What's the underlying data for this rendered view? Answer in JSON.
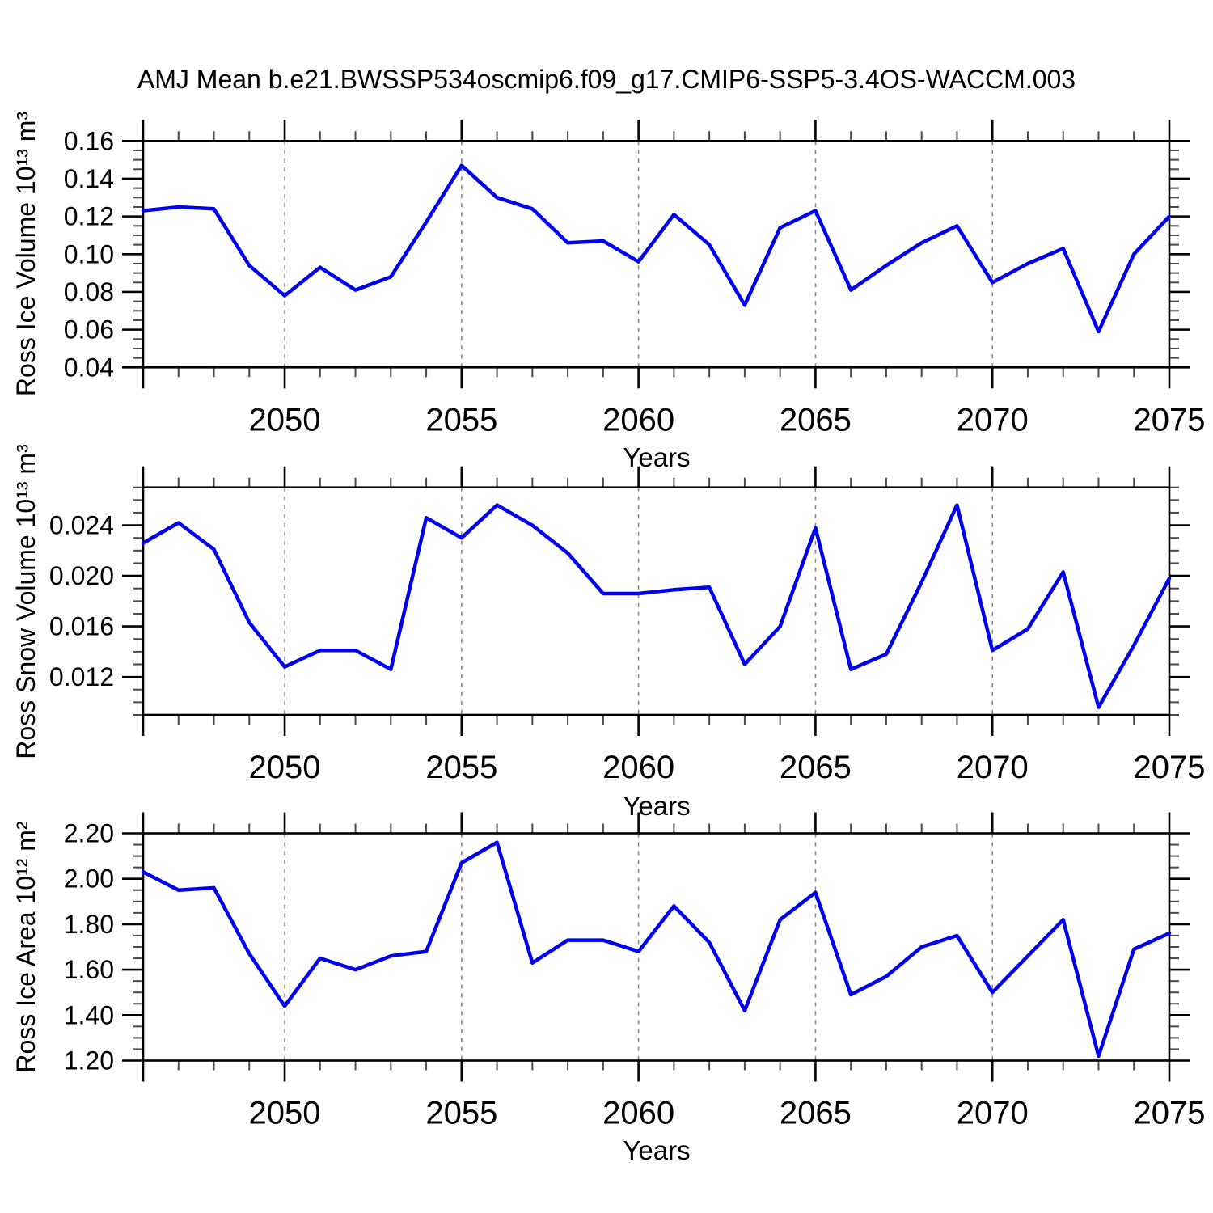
{
  "title": "AMJ Mean b.e21.BWSSP534oscmip6.f09_g17.CMIP6-SSP5-3.4OS-WACCM.003",
  "line_color": "#0000ee",
  "grid_color": "#8a8a8a",
  "x_axis": {
    "label": "Years",
    "range": [
      2046,
      2075
    ],
    "major_ticks": [
      2050,
      2055,
      2060,
      2065,
      2070,
      2075
    ],
    "tick_labels": [
      "2050",
      "2055",
      "2060",
      "2065",
      "2070",
      "2075"
    ],
    "gridline_years": [
      2050,
      2055,
      2060,
      2065,
      2070
    ],
    "minor_step": 1
  },
  "chart_data": [
    {
      "type": "line",
      "ylabel": "Ross Ice Volume 10¹³ m³",
      "yrange": [
        0.04,
        0.16
      ],
      "ytick_values": [
        0.04,
        0.06,
        0.08,
        0.1,
        0.12,
        0.14,
        0.16
      ],
      "ytick_labels": [
        "0.04",
        "0.06",
        "0.08",
        "0.10",
        "0.12",
        "0.14",
        "0.16"
      ],
      "y_minor_step": 0.005,
      "years": [
        2046,
        2047,
        2048,
        2049,
        2050,
        2051,
        2052,
        2053,
        2054,
        2055,
        2056,
        2057,
        2058,
        2059,
        2060,
        2061,
        2062,
        2063,
        2064,
        2065,
        2066,
        2067,
        2068,
        2069,
        2070,
        2071,
        2072,
        2073,
        2074,
        2075
      ],
      "values": [
        0.123,
        0.125,
        0.124,
        0.094,
        0.078,
        0.093,
        0.081,
        0.088,
        0.117,
        0.147,
        0.13,
        0.124,
        0.106,
        0.107,
        0.096,
        0.121,
        0.105,
        0.073,
        0.114,
        0.123,
        0.081,
        0.094,
        0.106,
        0.115,
        0.085,
        0.095,
        0.103,
        0.059,
        0.1,
        0.12
      ]
    },
    {
      "type": "line",
      "ylabel": "Ross Snow Volume 10¹³ m³",
      "yrange": [
        0.009,
        0.027
      ],
      "ytick_values": [
        0.012,
        0.016,
        0.02,
        0.024
      ],
      "ytick_labels": [
        "0.012",
        "0.016",
        "0.020",
        "0.024"
      ],
      "y_minor_step": 0.001,
      "years": [
        2046,
        2047,
        2048,
        2049,
        2050,
        2051,
        2052,
        2053,
        2054,
        2055,
        2056,
        2057,
        2058,
        2059,
        2060,
        2061,
        2062,
        2063,
        2064,
        2065,
        2066,
        2067,
        2068,
        2069,
        2070,
        2071,
        2072,
        2073,
        2074,
        2075
      ],
      "values": [
        0.0226,
        0.0242,
        0.0221,
        0.0163,
        0.0128,
        0.0141,
        0.0141,
        0.0126,
        0.0246,
        0.023,
        0.0256,
        0.024,
        0.0218,
        0.0186,
        0.0186,
        0.0189,
        0.0191,
        0.013,
        0.016,
        0.0238,
        0.0126,
        0.0138,
        0.0195,
        0.0256,
        0.0141,
        0.0158,
        0.0203,
        0.0096,
        0.0145,
        0.0198
      ]
    },
    {
      "type": "line",
      "ylabel": "Ross Ice Area 10¹² m²",
      "yrange": [
        1.2,
        2.2
      ],
      "ytick_values": [
        1.2,
        1.4,
        1.6,
        1.8,
        2.0,
        2.2
      ],
      "ytick_labels": [
        "1.20",
        "1.40",
        "1.60",
        "1.80",
        "2.00",
        "2.20"
      ],
      "y_minor_step": 0.05,
      "years": [
        2046,
        2047,
        2048,
        2049,
        2050,
        2051,
        2052,
        2053,
        2054,
        2055,
        2056,
        2057,
        2058,
        2059,
        2060,
        2061,
        2062,
        2063,
        2064,
        2065,
        2066,
        2067,
        2068,
        2069,
        2070,
        2071,
        2072,
        2073,
        2074,
        2075
      ],
      "values": [
        2.03,
        1.95,
        1.96,
        1.67,
        1.44,
        1.65,
        1.6,
        1.66,
        1.68,
        2.07,
        2.16,
        1.63,
        1.73,
        1.73,
        1.68,
        1.88,
        1.72,
        1.42,
        1.82,
        1.94,
        1.49,
        1.57,
        1.7,
        1.75,
        1.5,
        1.66,
        1.82,
        1.22,
        1.69,
        1.76
      ]
    }
  ]
}
